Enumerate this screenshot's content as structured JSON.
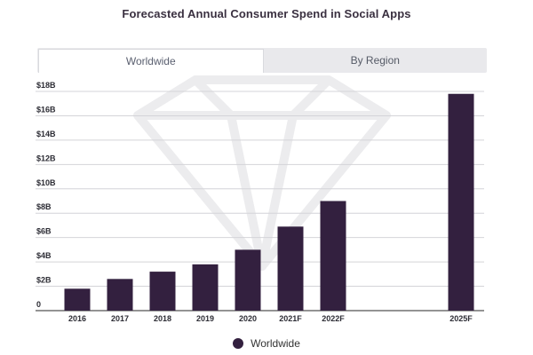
{
  "chart_data": {
    "type": "bar",
    "title": "Forecasted Annual Consumer Spend in Social Apps",
    "tabs": [
      {
        "label": "Worldwide",
        "active": true
      },
      {
        "label": "By Region",
        "active": false
      }
    ],
    "categories": [
      "2016",
      "2017",
      "2018",
      "2019",
      "2020",
      "2021F",
      "2022F",
      "2025F"
    ],
    "slots": [
      0,
      1,
      2,
      3,
      4,
      5,
      6,
      9
    ],
    "series": [
      {
        "name": "Worldwide",
        "values": [
          1.8,
          2.6,
          3.2,
          3.8,
          5.0,
          6.9,
          9.0,
          17.8
        ],
        "color": "#33203f"
      }
    ],
    "y_ticks": [
      0,
      2,
      4,
      6,
      8,
      10,
      12,
      14,
      16,
      18
    ],
    "y_tick_labels": [
      "0",
      "$2B",
      "$4B",
      "$6B",
      "$8B",
      "$10B",
      "$12B",
      "$14B",
      "$16B",
      "$18B"
    ],
    "ylim": [
      0,
      18
    ],
    "xlabel": "",
    "ylabel": "",
    "grid": true,
    "legend_position": "bottom-center"
  }
}
